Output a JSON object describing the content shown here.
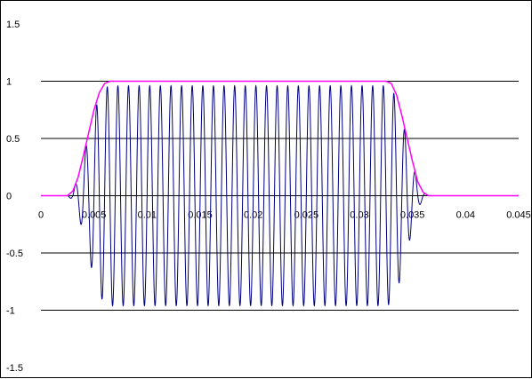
{
  "chart_data": {
    "type": "line",
    "title": "",
    "xlabel": "",
    "ylabel": "",
    "xlim": [
      0,
      0.045
    ],
    "ylim": [
      -1.5,
      1.5
    ],
    "grid": "horizontal",
    "legend": "none",
    "x_ticks": [
      "0",
      "0.005",
      "0.01",
      "0.015",
      "0.02",
      "0.025",
      "0.03",
      "0.035",
      "0.04",
      "0.045"
    ],
    "y_ticks": [
      "1.5",
      "1",
      "0.5",
      "0",
      "-0.5",
      "-1",
      "-1.5"
    ],
    "x_tick_values": [
      0,
      0.005,
      0.01,
      0.015,
      0.02,
      0.025,
      0.03,
      0.035,
      0.04,
      0.045
    ],
    "y_tick_values": [
      1.5,
      1,
      0.5,
      0,
      -0.5,
      -1,
      -1.5
    ],
    "series": [
      {
        "color": "#ff00ff",
        "description_points": "envelope",
        "x": [
          0,
          0.0025,
          0.003,
          0.0035,
          0.004,
          0.0045,
          0.005,
          0.0055,
          0.006,
          0.0065,
          0.0325,
          0.033,
          0.0335,
          0.034,
          0.0345,
          0.035,
          0.0355,
          0.036,
          0.0365,
          0.045
        ],
        "y": [
          0,
          0,
          0.04,
          0.16,
          0.35,
          0.55,
          0.75,
          0.9,
          0.98,
          1,
          1,
          0.98,
          0.88,
          0.7,
          0.5,
          0.3,
          0.12,
          0.03,
          0,
          0
        ]
      },
      {
        "color": "#000080",
        "description_points": "carrier",
        "carrier_frequency": 1000,
        "carrier_peak": 0.96,
        "x_start": 0,
        "x_end": 0.045
      }
    ]
  },
  "colors": {
    "background": "#ffffff",
    "grid": "#000000",
    "zero_line": "#000000",
    "text": "#000000"
  }
}
